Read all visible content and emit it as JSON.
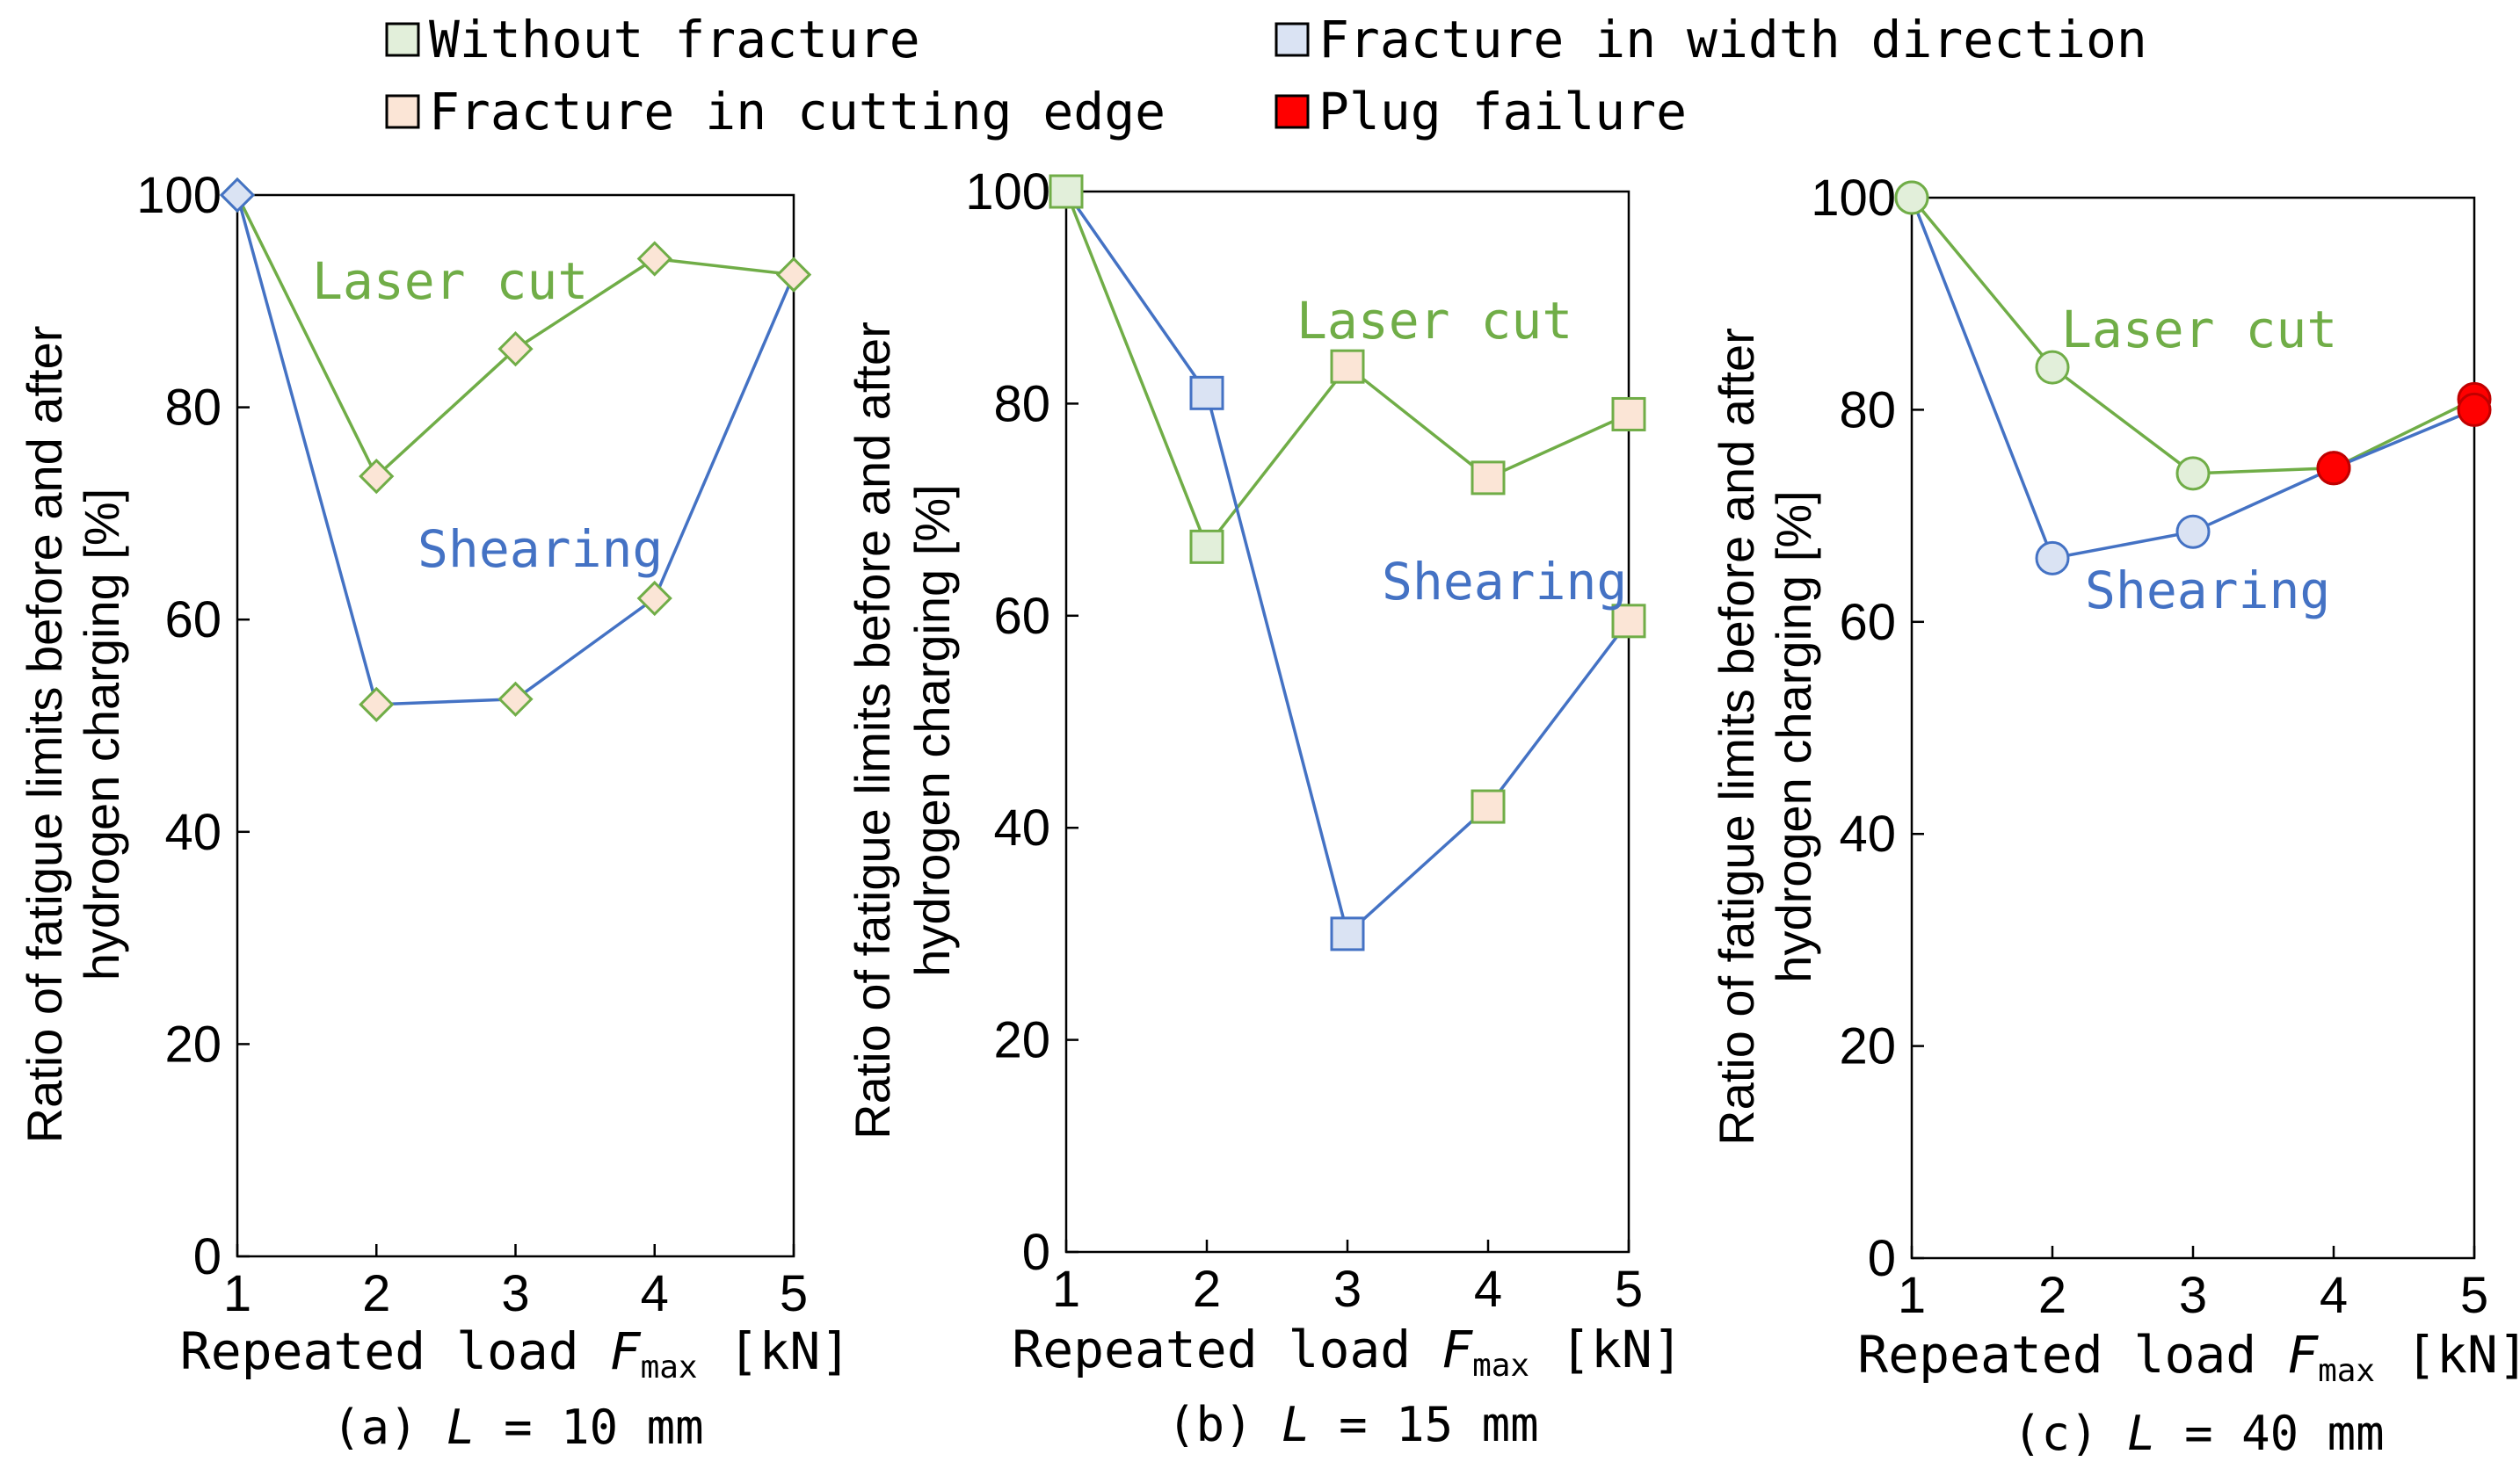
{
  "legend": [
    {
      "label": "Without fracture",
      "fill": "#e2efda",
      "stroke": "#70ad47",
      "type": "without"
    },
    {
      "label": "Fracture in width direction",
      "fill": "#dae3f3",
      "stroke": "#4472c4",
      "type": "width"
    },
    {
      "label": "Fracture in cutting edge",
      "fill": "#fbe5d6",
      "stroke": "#70ad47",
      "type": "edge"
    },
    {
      "label": "Plug failure",
      "fill": "#ff0000",
      "stroke": "#c00000",
      "type": "plug"
    }
  ],
  "colors": {
    "laser_cut": "#70ad47",
    "shearing": "#4472c4"
  },
  "chart_data": [
    {
      "type": "line",
      "panel": "a",
      "marker": "diamond",
      "caption": {
        "prefix": "(a)",
        "var": "L",
        "rest": " = 10 mm"
      },
      "ylabel": [
        "Ratio of fatigue limits before and after",
        "hydrogen charging [%]"
      ],
      "xlabel": {
        "prefix": "Repeated load ",
        "var": "F",
        "sub": "max",
        "suffix": " [kN]"
      },
      "x": [
        1,
        2,
        3,
        4,
        5
      ],
      "xticks": [
        "1",
        "2",
        "3",
        "4",
        "5"
      ],
      "yticks": [
        "0",
        "20",
        "40",
        "60",
        "80",
        "100"
      ],
      "xlim": [
        1,
        5
      ],
      "ylim": [
        0,
        100
      ],
      "series": [
        {
          "name": "Laser cut",
          "color": "laser_cut",
          "values": [
            100,
            73.5,
            85.5,
            94,
            92.5
          ],
          "markers": [
            "without",
            "edge",
            "edge",
            "edge",
            "edge"
          ]
        },
        {
          "name": "Shearing",
          "color": "shearing",
          "values": [
            100,
            52,
            52.5,
            62,
            92.5
          ],
          "markers": [
            "width",
            "edge",
            "edge",
            "edge",
            "edge"
          ]
        }
      ]
    },
    {
      "type": "line",
      "panel": "b",
      "marker": "square",
      "caption": {
        "prefix": "(b)",
        "var": "L",
        "rest": " = 15 mm"
      },
      "ylabel": [
        "Ratio of fatigue limits before and after",
        "hydrogen charging [%]"
      ],
      "xlabel": {
        "prefix": "Repeated load ",
        "var": "F",
        "sub": "max",
        "suffix": " [kN]"
      },
      "x": [
        1,
        2,
        3,
        4,
        5
      ],
      "xticks": [
        "1",
        "2",
        "3",
        "4",
        "5"
      ],
      "yticks": [
        "0",
        "20",
        "40",
        "60",
        "80",
        "100"
      ],
      "xlim": [
        1,
        5
      ],
      "ylim": [
        0,
        100
      ],
      "series": [
        {
          "name": "Laser cut",
          "color": "laser_cut",
          "values": [
            100,
            66.5,
            83.5,
            73,
            79
          ],
          "markers": [
            "without",
            "without",
            "edge",
            "edge",
            "edge"
          ]
        },
        {
          "name": "Shearing",
          "color": "shearing",
          "values": [
            100,
            81,
            30,
            42,
            59.5
          ],
          "markers": [
            "without",
            "width",
            "width",
            "edge",
            "edge"
          ]
        }
      ]
    },
    {
      "type": "line",
      "panel": "c",
      "marker": "circle",
      "caption": {
        "prefix": "(c)",
        "var": "L",
        "rest": " = 40 mm"
      },
      "ylabel": [
        "Ratio of fatigue limits before and after",
        "hydrogen charging [%]"
      ],
      "xlabel": {
        "prefix": "Repeated load ",
        "var": "F",
        "sub": "max",
        "suffix": " [kN]"
      },
      "x": [
        1,
        2,
        3,
        4,
        5
      ],
      "xticks": [
        "1",
        "2",
        "3",
        "4",
        "5"
      ],
      "yticks": [
        "0",
        "20",
        "40",
        "60",
        "80",
        "100"
      ],
      "xlim": [
        1,
        5
      ],
      "ylim": [
        0,
        100
      ],
      "series": [
        {
          "name": "Laser cut",
          "color": "laser_cut",
          "values": [
            100,
            84,
            74,
            74.5,
            81
          ],
          "markers": [
            "without",
            "without",
            "without",
            "plug",
            "plug"
          ]
        },
        {
          "name": "Shearing",
          "color": "shearing",
          "values": [
            100,
            66,
            68.5,
            74.5,
            80
          ],
          "markers": [
            "without",
            "width",
            "width",
            "plug",
            "plug"
          ]
        }
      ]
    }
  ]
}
